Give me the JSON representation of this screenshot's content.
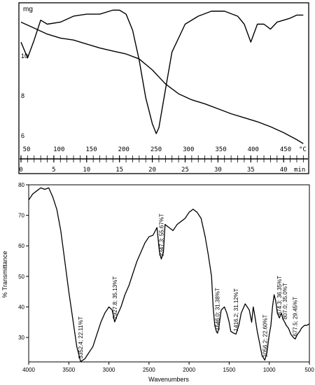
{
  "chart_data": [
    {
      "type": "line",
      "title": "",
      "y_axis_label": "mg",
      "y_ticks": [
        "10",
        "8",
        "6"
      ],
      "temperature_axis": {
        "unit": "°C",
        "ticks": [
          "50",
          "100",
          "150",
          "200",
          "250",
          "300",
          "350",
          "400",
          "450"
        ]
      },
      "time_axis": {
        "unit": "min",
        "ticks": [
          "0",
          "5",
          "10",
          "15",
          "20",
          "25",
          "30",
          "35",
          "40"
        ]
      },
      "series": [
        {
          "x": [
            0,
            2,
            4,
            6,
            8,
            10,
            12,
            14,
            16,
            18,
            20,
            22,
            24,
            26,
            28,
            30,
            32,
            34,
            36,
            38,
            40,
            42,
            43
          ],
          "y": [
            11.7,
            11.4,
            11.1,
            10.9,
            10.8,
            10.6,
            10.4,
            10.25,
            10.1,
            9.85,
            9.3,
            8.6,
            8.1,
            7.8,
            7.6,
            7.35,
            7.1,
            6.9,
            6.7,
            6.45,
            6.15,
            5.8,
            5.6
          ]
        },
        {
          "x": [
            0,
            1,
            2,
            3,
            4,
            6,
            8,
            10,
            12,
            14,
            15,
            16,
            17,
            18,
            19,
            20,
            20.6,
            21,
            22,
            23,
            25,
            27,
            29,
            31,
            33,
            34,
            35,
            36,
            37,
            38,
            39,
            40,
            41,
            42,
            43
          ],
          "y": [
            10.7,
            9.9,
            10.8,
            11.8,
            11.6,
            11.7,
            12.0,
            12.1,
            12.1,
            12.3,
            12.3,
            12.1,
            11.3,
            9.8,
            7.9,
            6.6,
            6.1,
            6.4,
            8.3,
            10.2,
            11.6,
            12.0,
            12.25,
            12.25,
            12.0,
            11.6,
            10.7,
            11.6,
            11.6,
            11.35,
            11.7,
            11.8,
            11.9,
            12.05,
            12.05
          ]
        }
      ]
    },
    {
      "type": "line",
      "title": "",
      "xlabel": "Wavenumbers",
      "ylabel": "% Transmittance",
      "xlim": [
        4000,
        500
      ],
      "ylim": [
        22,
        80
      ],
      "x_ticks": [
        "4000",
        "3500",
        "3000",
        "2500",
        "2000",
        "1500",
        "1000",
        "500"
      ],
      "y_ticks": [
        "30",
        "40",
        "50",
        "60",
        "70",
        "80"
      ],
      "series": [
        {
          "x": [
            4000,
            3950,
            3900,
            3850,
            3800,
            3750,
            3700,
            3650,
            3600,
            3550,
            3500,
            3450,
            3400,
            3352,
            3300,
            3250,
            3200,
            3150,
            3100,
            3050,
            3000,
            2960,
            2928,
            2900,
            2850,
            2800,
            2750,
            2700,
            2650,
            2600,
            2550,
            2500,
            2450,
            2400,
            2370,
            2347,
            2320,
            2300,
            2250,
            2200,
            2150,
            2100,
            2050,
            2000,
            1950,
            1900,
            1850,
            1800,
            1760,
            1720,
            1700,
            1680,
            1660,
            1646,
            1630,
            1600,
            1560,
            1530,
            1500,
            1480,
            1450,
            1416,
            1380,
            1350,
            1300,
            1250,
            1220,
            1200,
            1180,
            1150,
            1120,
            1090,
            1056,
            1030,
            1000,
            980,
            960,
            940,
            920,
            900,
            874,
            850,
            830,
            807,
            790,
            760,
            730,
            700,
            677,
            650,
            620,
            600,
            560,
            530,
            500
          ],
          "y": [
            75,
            77,
            78,
            79,
            78.5,
            79,
            76,
            72,
            65,
            55,
            45,
            36,
            27,
            22.1,
            23,
            25,
            27,
            31,
            35,
            38,
            40,
            39,
            35.1,
            37,
            40,
            44,
            47,
            51,
            55,
            58,
            61,
            63,
            63.5,
            66,
            58,
            55.7,
            58,
            67,
            66,
            65,
            67,
            68,
            69,
            71,
            72,
            71,
            69,
            63,
            57,
            50,
            40,
            34,
            32,
            31.4,
            33,
            39,
            40,
            38,
            35,
            32,
            31.5,
            31.1,
            34,
            38,
            41,
            39,
            35,
            40,
            37,
            32,
            28,
            24,
            22.6,
            25,
            31,
            34,
            40,
            44,
            42,
            38,
            36.4,
            38,
            36,
            35.0,
            34,
            33,
            31,
            30,
            29.5,
            31,
            32,
            33,
            34,
            34,
            34.5
          ]
        }
      ],
      "annotations": [
        "3352.4; 22.11%T",
        "2927.8; 35.13%T",
        "2347.3; 55.67%T",
        "1646.0; 31.38%T",
        "1416.2; 31.12%T",
        "1056.2; 22.60%T",
        "874.3; 36.35%T",
        "807.0; 35.0%T",
        "677.5; 29.45%T"
      ]
    }
  ]
}
